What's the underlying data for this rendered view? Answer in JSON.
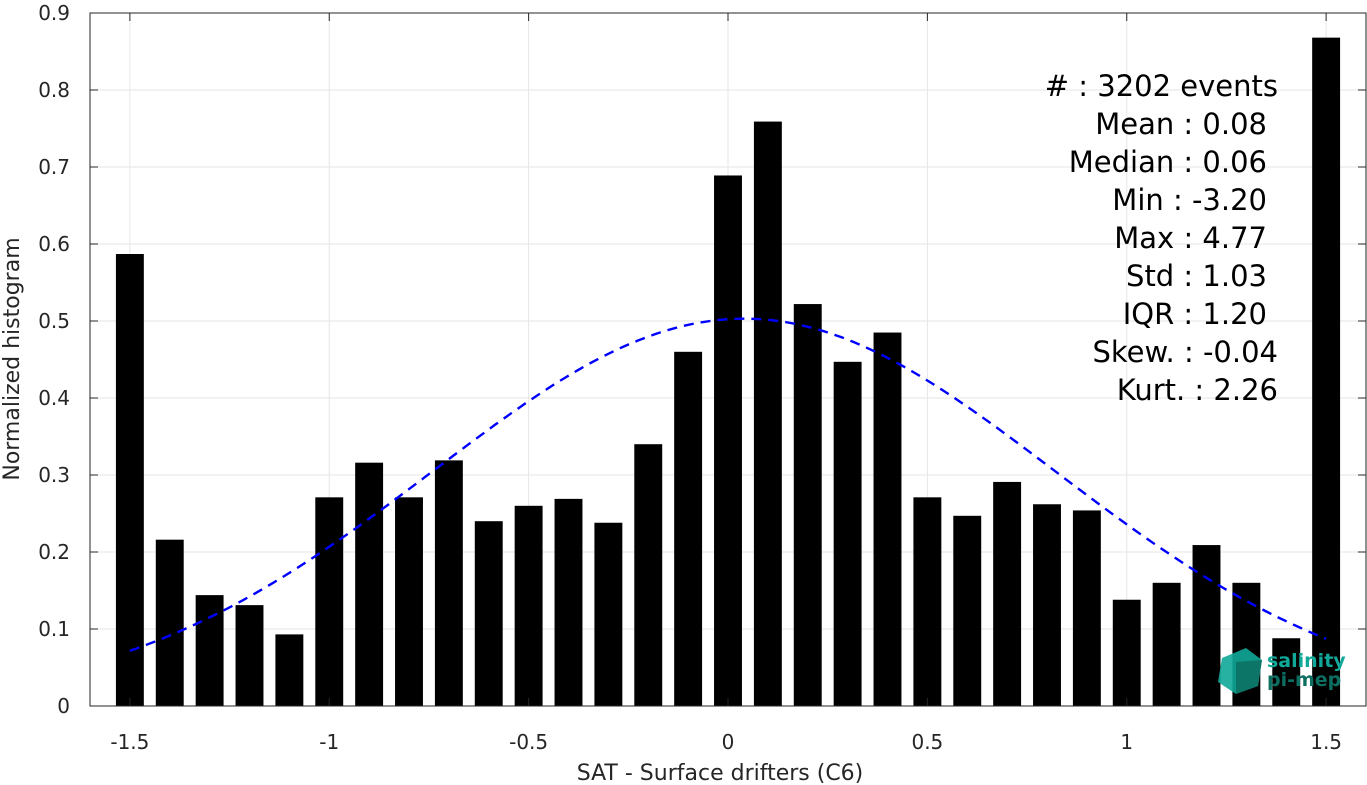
{
  "chart_data": {
    "type": "bar",
    "xlabel": "SAT - Surface drifters (C6)",
    "ylabel": "Normalized histogram",
    "xlim": [
      -1.6,
      1.6
    ],
    "ylim": [
      0,
      0.9
    ],
    "xticks": [
      -1.5,
      -1,
      -0.5,
      0,
      0.5,
      1,
      1.5
    ],
    "xtick_labels": [
      "-1.5",
      "-1",
      "-0.5",
      "0",
      "0.5",
      "1",
      "1.5"
    ],
    "yticks": [
      0,
      0.1,
      0.2,
      0.3,
      0.4,
      0.5,
      0.6,
      0.7,
      0.8,
      0.9
    ],
    "ytick_labels": [
      "0",
      "0.1",
      "0.2",
      "0.3",
      "0.4",
      "0.5",
      "0.6",
      "0.7",
      "0.8",
      "0.9"
    ],
    "grid": true,
    "bar_color": "#000000",
    "bar_width": 0.07,
    "bars": {
      "x": [
        -1.5,
        -1.4,
        -1.3,
        -1.2,
        -1.1,
        -1.0,
        -0.9,
        -0.8,
        -0.7,
        -0.6,
        -0.5,
        -0.4,
        -0.3,
        -0.2,
        -0.1,
        0.0,
        0.1,
        0.2,
        0.3,
        0.4,
        0.5,
        0.6,
        0.7,
        0.8,
        0.9,
        1.0,
        1.1,
        1.2,
        1.3,
        1.4,
        1.5
      ],
      "values": [
        0.587,
        0.216,
        0.144,
        0.131,
        0.093,
        0.271,
        0.316,
        0.271,
        0.319,
        0.24,
        0.26,
        0.269,
        0.238,
        0.34,
        0.46,
        0.689,
        0.759,
        0.522,
        0.447,
        0.485,
        0.271,
        0.247,
        0.291,
        0.262,
        0.254,
        0.138,
        0.16,
        0.209,
        0.16,
        0.088,
        0.868
      ]
    },
    "fit_curve": {
      "style": "dashed",
      "color": "#0000ff",
      "mean": 0.04,
      "peak": 0.503,
      "sigma": 0.78,
      "x_range": [
        -1.5,
        1.5
      ]
    },
    "stats": [
      "#  : 3202 events",
      "Mean : 0.08",
      "Median : 0.06",
      "Min : -3.20",
      "Max : 4.77",
      "Std : 1.03",
      "IQR : 1.20",
      "Skew. : -0.04",
      "Kurt. : 2.26"
    ]
  },
  "logo": {
    "line1": "salinity",
    "line2": "pi-mep",
    "colors": [
      "#10a898",
      "#0d6e62"
    ]
  }
}
